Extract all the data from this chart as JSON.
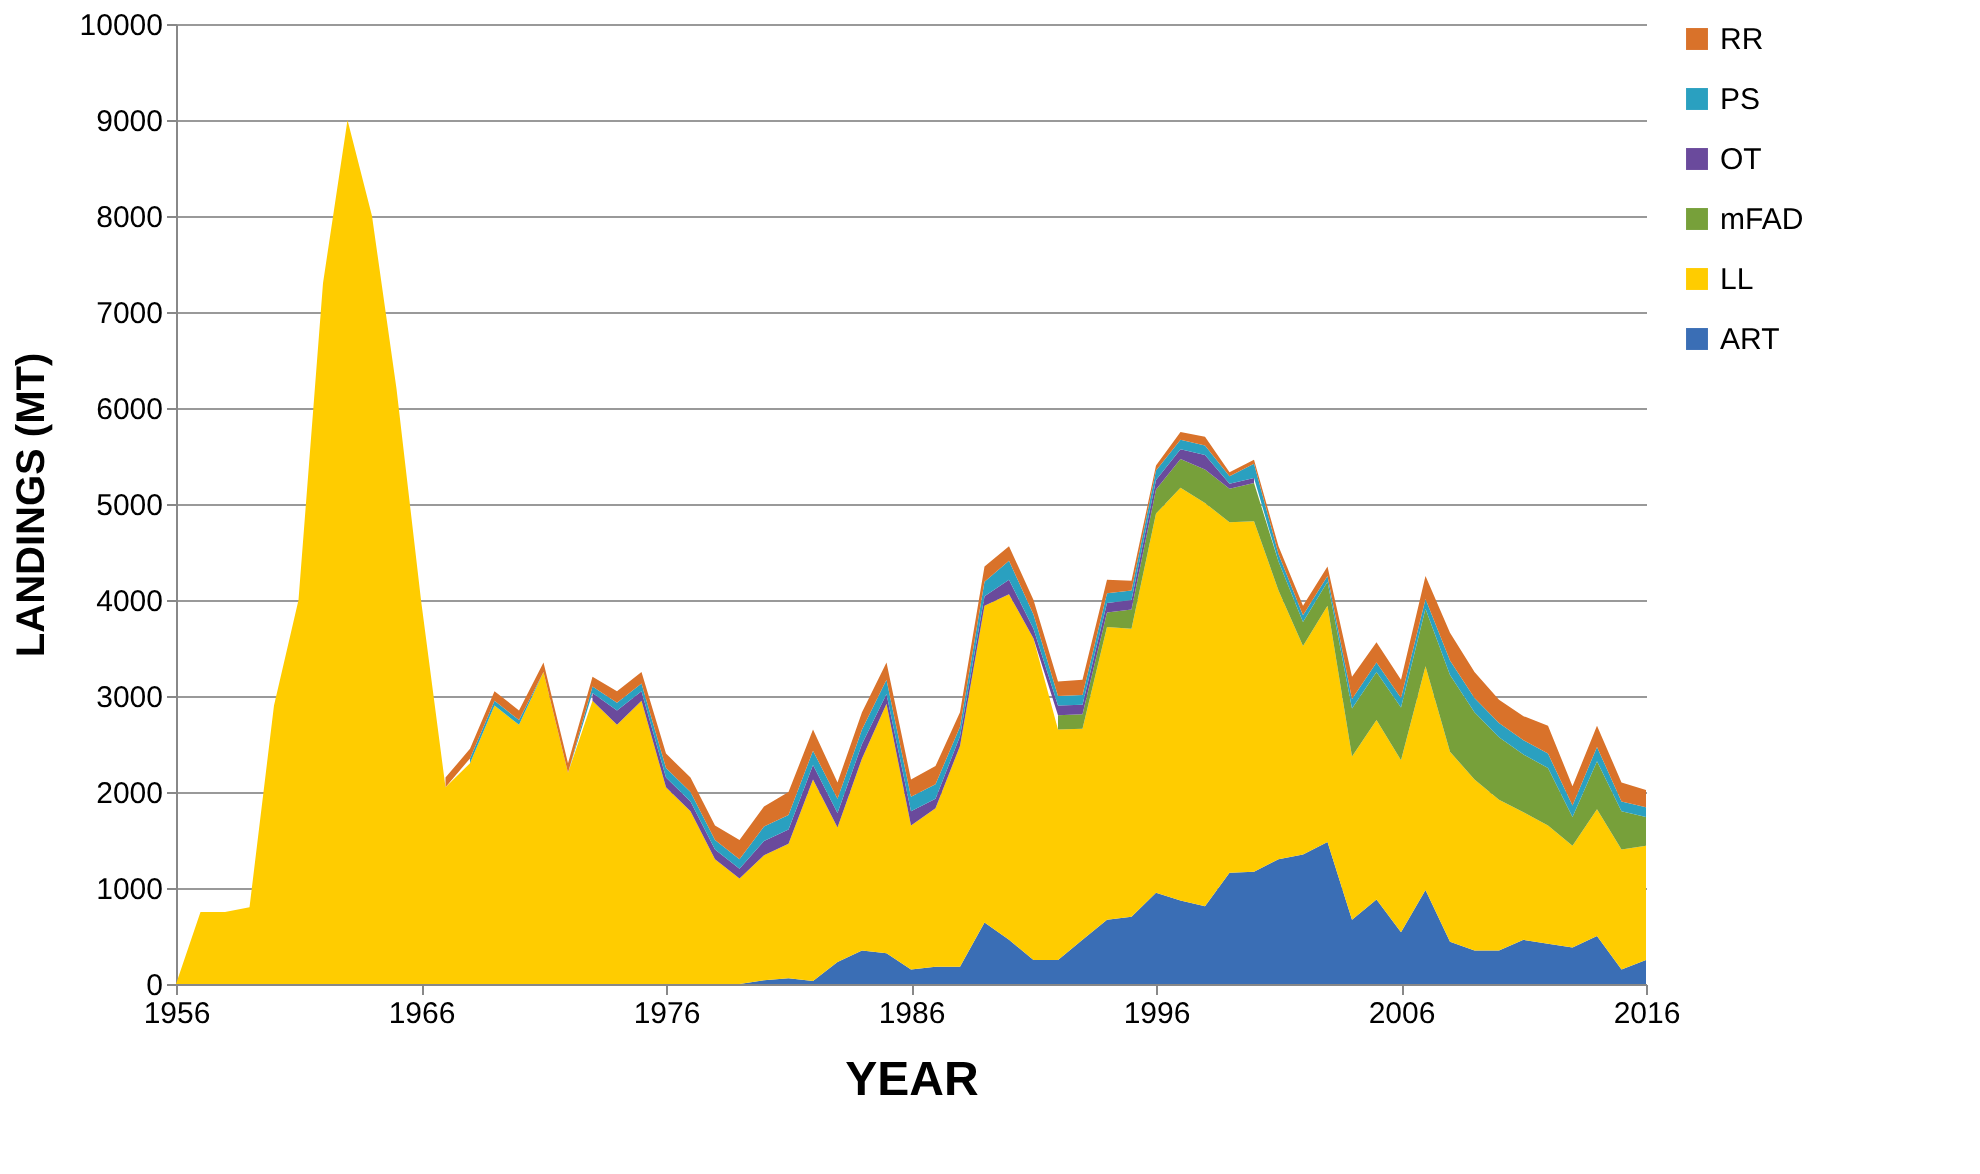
{
  "chart_data": {
    "type": "area",
    "stacked": true,
    "xlabel": "YEAR",
    "ylabel": "LANDINGS (MT)",
    "x": [
      1956,
      1957,
      1958,
      1959,
      1960,
      1961,
      1962,
      1963,
      1964,
      1965,
      1966,
      1967,
      1968,
      1969,
      1970,
      1971,
      1972,
      1973,
      1974,
      1975,
      1976,
      1977,
      1978,
      1979,
      1980,
      1981,
      1982,
      1983,
      1984,
      1985,
      1986,
      1987,
      1988,
      1989,
      1990,
      1991,
      1992,
      1993,
      1994,
      1995,
      1996,
      1997,
      1998,
      1999,
      2000,
      2001,
      2002,
      2003,
      2004,
      2005,
      2006,
      2007,
      2008,
      2009,
      2010,
      2011,
      2012,
      2013,
      2014,
      2015,
      2016
    ],
    "series": [
      {
        "name": "ART",
        "color": "#3a6eb5",
        "values": [
          0,
          0,
          0,
          0,
          0,
          0,
          0,
          0,
          0,
          0,
          0,
          0,
          0,
          0,
          0,
          0,
          0,
          0,
          0,
          0,
          0,
          0,
          0,
          0,
          40,
          60,
          30,
          230,
          350,
          320,
          150,
          180,
          180,
          640,
          460,
          250,
          250,
          460,
          670,
          700,
          950,
          870,
          810,
          1160,
          1170,
          1300,
          1350,
          1480,
          670,
          880,
          540,
          980,
          440,
          350,
          350,
          460,
          420,
          380,
          500,
          150,
          250
        ]
      },
      {
        "name": "LL",
        "color": "#ffcc00",
        "values": [
          0,
          750,
          750,
          800,
          2900,
          4000,
          7300,
          9000,
          8000,
          6200,
          4000,
          2050,
          2300,
          2900,
          2700,
          3250,
          2200,
          2950,
          2700,
          2950,
          2050,
          1800,
          1300,
          1100,
          1300,
          1400,
          2100,
          1400,
          2000,
          2600,
          1500,
          1650,
          2300,
          3300,
          3600,
          3350,
          2400,
          2200,
          3050,
          3000,
          3950,
          4300,
          4200,
          3650,
          3650,
          2800,
          2170,
          2460,
          1700,
          1870,
          1790,
          2330,
          1980,
          1780,
          1570,
          1330,
          1230,
          1060,
          1320,
          1250,
          1190
        ]
      },
      {
        "name": "mFAD",
        "color": "#77a03a",
        "values": [
          null,
          null,
          null,
          null,
          null,
          null,
          null,
          null,
          null,
          null,
          null,
          null,
          null,
          null,
          null,
          null,
          null,
          null,
          null,
          null,
          null,
          null,
          null,
          null,
          null,
          null,
          null,
          null,
          null,
          null,
          null,
          null,
          null,
          null,
          null,
          null,
          150,
          150,
          150,
          200,
          250,
          300,
          350,
          350,
          400,
          300,
          250,
          250,
          500,
          500,
          550,
          600,
          800,
          700,
          650,
          600,
          600,
          300,
          500,
          400,
          300
        ]
      },
      {
        "name": "OT",
        "color": "#6a4a9c",
        "values": [
          null,
          null,
          null,
          null,
          null,
          null,
          null,
          null,
          null,
          null,
          null,
          null,
          null,
          null,
          null,
          null,
          null,
          80,
          150,
          100,
          100,
          100,
          100,
          100,
          150,
          150,
          150,
          150,
          150,
          100,
          150,
          100,
          100,
          100,
          150,
          100,
          100,
          100,
          100,
          100,
          100,
          100,
          150,
          50,
          50,
          null,
          null,
          null,
          null,
          null,
          null,
          null,
          null,
          null,
          null,
          null,
          null,
          null,
          null,
          null,
          null
        ]
      },
      {
        "name": "PS",
        "color": "#2aa0c0",
        "values": [
          null,
          null,
          null,
          null,
          null,
          null,
          null,
          null,
          null,
          null,
          null,
          null,
          50,
          50,
          50,
          0,
          0,
          70,
          80,
          80,
          100,
          100,
          100,
          100,
          150,
          150,
          150,
          150,
          150,
          150,
          150,
          150,
          100,
          150,
          200,
          150,
          100,
          100,
          100,
          100,
          100,
          100,
          100,
          80,
          150,
          80,
          70,
          60,
          100,
          100,
          100,
          100,
          150,
          150,
          150,
          150,
          150,
          120,
          150,
          100,
          100
        ]
      },
      {
        "name": "RR",
        "color": "#d9722a",
        "values": [
          null,
          null,
          null,
          null,
          null,
          null,
          null,
          null,
          null,
          null,
          null,
          100,
          100,
          100,
          100,
          100,
          100,
          100,
          120,
          120,
          150,
          150,
          150,
          200,
          210,
          240,
          220,
          170,
          180,
          180,
          180,
          190,
          150,
          160,
          150,
          150,
          150,
          160,
          140,
          100,
          50,
          80,
          90,
          40,
          40,
          80,
          100,
          100,
          230,
          210,
          190,
          240,
          290,
          270,
          240,
          250,
          290,
          200,
          220,
          200,
          180
        ]
      }
    ],
    "xlim": [
      1956,
      2016
    ],
    "xticks": [
      1956,
      1966,
      1976,
      1986,
      1996,
      2006,
      2016
    ],
    "ylim": [
      0,
      10000
    ],
    "yticks": [
      0,
      1000,
      2000,
      3000,
      4000,
      5000,
      6000,
      7000,
      8000,
      9000,
      10000
    ],
    "grid": "y",
    "legend": "right"
  }
}
